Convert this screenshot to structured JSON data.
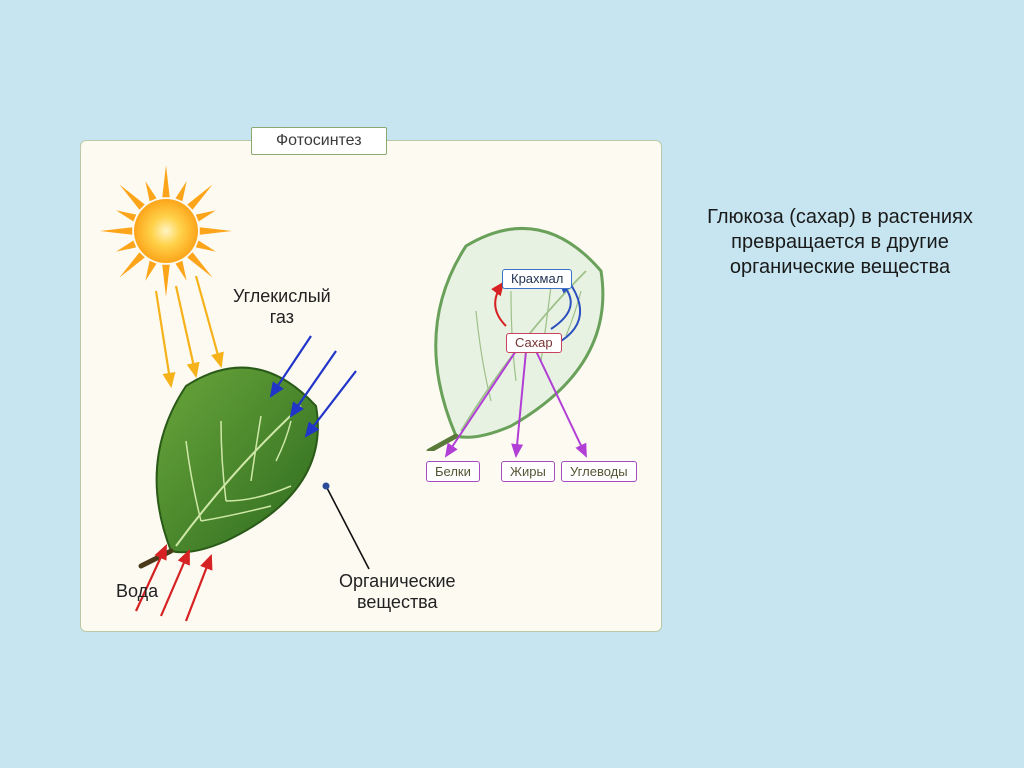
{
  "diagram": {
    "type": "infographic",
    "title": "Фотосинтез",
    "background_color": "#c6e5f0",
    "panel_background": "#fdfaf2",
    "panel_border": "#b9c9a8",
    "title_border": "#8aa86f",
    "title_fontsize": 16,
    "label_fontsize": 18,
    "mini_label_fontsize": 13,
    "side_text_fontsize": 20,
    "labels": {
      "co2_line1": "Углекислый",
      "co2_line2": "газ",
      "water": "Вода",
      "organic_line1": "Органические",
      "organic_line2": "вещества",
      "starch": "Крахмал",
      "sugar": "Сахар",
      "proteins": "Белки",
      "fats": "Жиры",
      "carbs": "Углеводы"
    },
    "side_caption": "Глюкоза (сахар) в растениях превращается в другие органические вещества",
    "sun": {
      "core_color": "#fca51a",
      "halo_color": "#ffd24a",
      "inner_color": "#fff1b8",
      "ray_count": 16
    },
    "leaf1": {
      "fill_dark": "#2e6b1f",
      "fill_light": "#6aa63b",
      "vein_color": "#cfe8a8",
      "stroke": "#2a5a18"
    },
    "leaf2": {
      "fill": "#e8f2e2",
      "outline": "#6aa15a",
      "vein_color": "#9ec08a"
    },
    "arrows": {
      "co2_color": "#2135c8",
      "water_color": "#d62222",
      "organic_color": "#111111",
      "ray_color": "#f5b21a",
      "transform_color": "#b13fd6",
      "starch_arrow_color": "#d62222",
      "sugar_cycle_color": "#2a4fbf",
      "arrow_width": 2.2
    },
    "mini_borders": {
      "starch": "#3a72c9",
      "sugar": "#c9435e",
      "products": "#a44bc0"
    }
  }
}
